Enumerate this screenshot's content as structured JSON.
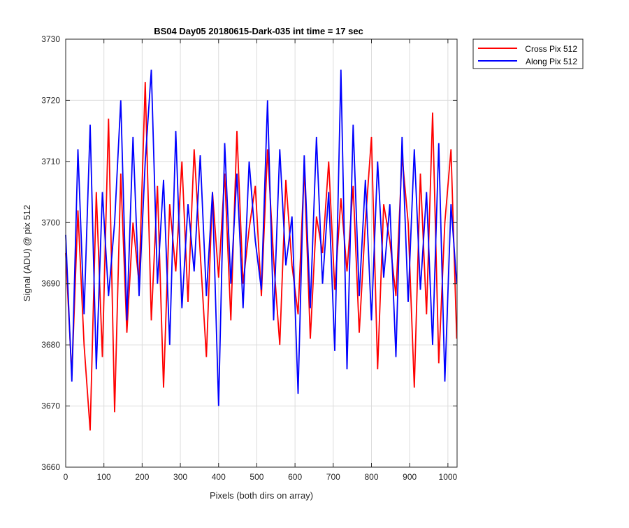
{
  "chart_data": {
    "type": "line",
    "title": "BS04 Day05 20180615-Dark-035 int time = 17 sec",
    "xlabel": "Pixels (both dirs on array)",
    "ylabel": "Signal (ADU) @ pix 512",
    "xlim": [
      0,
      1024
    ],
    "ylim": [
      3660,
      3730
    ],
    "xticks": [
      "0",
      "100",
      "200",
      "300",
      "400",
      "500",
      "600",
      "700",
      "800",
      "900",
      "1000"
    ],
    "yticks": [
      "3660",
      "3670",
      "3680",
      "3690",
      "3700",
      "3710",
      "3720",
      "3730"
    ],
    "grid": true,
    "legend_position": "outside-top-right",
    "series": [
      {
        "name": "Cross Pix 512",
        "color": "#ff0000",
        "x": [
          0,
          16,
          32,
          48,
          64,
          80,
          96,
          112,
          128,
          144,
          160,
          176,
          192,
          208,
          224,
          240,
          256,
          272,
          288,
          304,
          320,
          336,
          352,
          368,
          384,
          400,
          416,
          432,
          448,
          464,
          480,
          496,
          512,
          528,
          544,
          560,
          576,
          592,
          608,
          624,
          640,
          656,
          672,
          688,
          704,
          720,
          736,
          752,
          768,
          784,
          800,
          816,
          832,
          848,
          864,
          880,
          896,
          912,
          928,
          944,
          960,
          976,
          992,
          1008,
          1023
        ],
        "y": [
          3695,
          3675,
          3702,
          3680,
          3666,
          3705,
          3678,
          3717,
          3669,
          3708,
          3682,
          3700,
          3690,
          3723,
          3684,
          3706,
          3673,
          3703,
          3692,
          3710,
          3687,
          3712,
          3695,
          3678,
          3705,
          3691,
          3708,
          3684,
          3715,
          3690,
          3699,
          3706,
          3688,
          3712,
          3694,
          3680,
          3707,
          3693,
          3685,
          3709,
          3681,
          3701,
          3695,
          3710,
          3689,
          3704,
          3692,
          3706,
          3682,
          3700,
          3714,
          3676,
          3703,
          3697,
          3688,
          3711,
          3700,
          3673,
          3708,
          3685,
          3718,
          3677,
          3700,
          3712,
          3681
        ]
      },
      {
        "name": "Along Pix 512",
        "color": "#0000ff",
        "x": [
          0,
          16,
          32,
          48,
          64,
          80,
          96,
          112,
          128,
          144,
          160,
          176,
          192,
          208,
          224,
          240,
          256,
          272,
          288,
          304,
          320,
          336,
          352,
          368,
          384,
          400,
          416,
          432,
          448,
          464,
          480,
          496,
          512,
          528,
          544,
          560,
          576,
          592,
          608,
          624,
          640,
          656,
          672,
          688,
          704,
          720,
          736,
          752,
          768,
          784,
          800,
          816,
          832,
          848,
          864,
          880,
          896,
          912,
          928,
          944,
          960,
          976,
          992,
          1008,
          1023
        ],
        "y": [
          3698,
          3674,
          3712,
          3685,
          3716,
          3676,
          3705,
          3688,
          3700,
          3720,
          3684,
          3714,
          3688,
          3710,
          3725,
          3690,
          3707,
          3680,
          3715,
          3686,
          3703,
          3692,
          3711,
          3688,
          3705,
          3670,
          3713,
          3690,
          3708,
          3686,
          3710,
          3697,
          3689,
          3720,
          3684,
          3712,
          3693,
          3701,
          3672,
          3711,
          3686,
          3714,
          3690,
          3705,
          3679,
          3725,
          3676,
          3716,
          3688,
          3707,
          3684,
          3710,
          3691,
          3703,
          3678,
          3714,
          3687,
          3712,
          3689,
          3705,
          3680,
          3713,
          3674,
          3703,
          3690
        ]
      }
    ]
  }
}
